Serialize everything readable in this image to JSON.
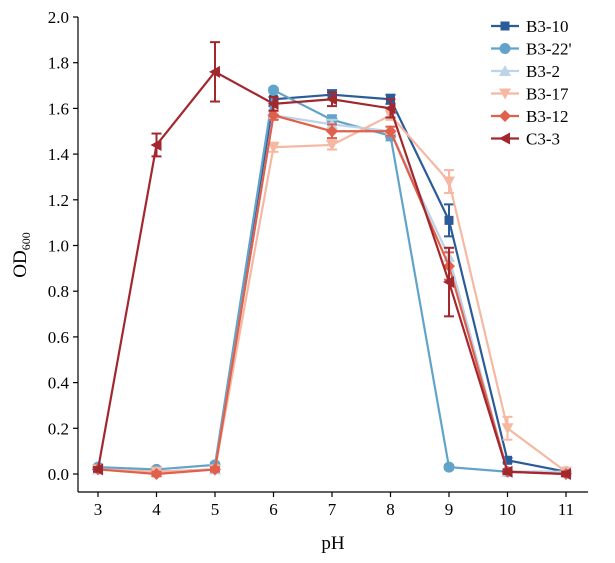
{
  "chart_data": {
    "type": "line",
    "title": "",
    "xlabel": "pH",
    "ylabel": "OD",
    "ylabel_sub": "600",
    "xlim": [
      2.65,
      11.35
    ],
    "ylim": [
      -0.08,
      2.0
    ],
    "x": [
      3,
      4,
      5,
      6,
      7,
      8,
      9,
      10,
      11
    ],
    "xticks": [
      "3",
      "4",
      "5",
      "6",
      "7",
      "8",
      "9",
      "10",
      "11"
    ],
    "yticks": [
      "0.0",
      "0.2",
      "0.4",
      "0.6",
      "0.8",
      "1.0",
      "1.2",
      "1.4",
      "1.6",
      "1.8",
      "2.0"
    ],
    "legend_position": "top-right",
    "series": [
      {
        "name": "B3-10",
        "color": "#2b5c9a",
        "marker": "square",
        "values": [
          0.02,
          0.01,
          0.02,
          1.64,
          1.66,
          1.64,
          1.11,
          0.06,
          0.01
        ],
        "errors": [
          0.01,
          0.01,
          0.01,
          0.03,
          0.02,
          0.02,
          0.07,
          0.01,
          0.01
        ]
      },
      {
        "name": "B3-22'",
        "color": "#62a3c9",
        "marker": "circle",
        "values": [
          0.03,
          0.02,
          0.04,
          1.68,
          1.55,
          1.48,
          0.03,
          0.01,
          0.01
        ],
        "errors": [
          0.01,
          0.01,
          0.01,
          0.01,
          0.02,
          0.02,
          0.01,
          0.01,
          0.01
        ]
      },
      {
        "name": "B3-2",
        "color": "#bcd3e8",
        "marker": "triangle-up",
        "values": [
          0.02,
          0.01,
          0.02,
          1.57,
          1.53,
          1.5,
          0.95,
          0.01,
          0.01
        ],
        "errors": [
          0.01,
          0.01,
          0.01,
          0.02,
          0.02,
          0.02,
          0.04,
          0.01,
          0.01
        ]
      },
      {
        "name": "B3-17",
        "color": "#f6b8a2",
        "marker": "triangle-down",
        "values": [
          0.02,
          0.01,
          0.02,
          1.43,
          1.44,
          1.57,
          1.28,
          0.2,
          0.01
        ],
        "errors": [
          0.01,
          0.01,
          0.01,
          0.02,
          0.02,
          0.02,
          0.05,
          0.05,
          0.01
        ]
      },
      {
        "name": "B3-12",
        "color": "#e0604c",
        "marker": "diamond",
        "values": [
          0.02,
          0.0,
          0.02,
          1.57,
          1.5,
          1.5,
          0.91,
          0.01,
          0.0
        ],
        "errors": [
          0.01,
          0.01,
          0.01,
          0.02,
          0.03,
          0.02,
          0.06,
          0.01,
          0.01
        ]
      },
      {
        "name": "C3-3",
        "color": "#a3282e",
        "marker": "triangle-left",
        "values": [
          0.02,
          1.44,
          1.76,
          1.62,
          1.64,
          1.6,
          0.84,
          0.01,
          0.0
        ],
        "errors": [
          0.01,
          0.05,
          0.13,
          0.03,
          0.03,
          0.04,
          0.15,
          0.01,
          0.01
        ]
      }
    ]
  }
}
